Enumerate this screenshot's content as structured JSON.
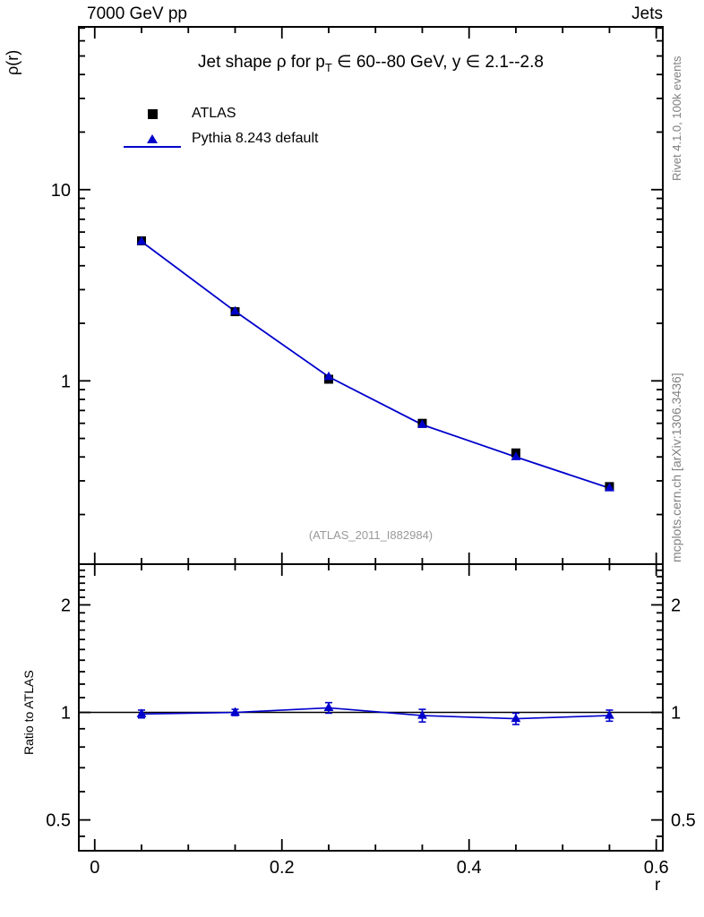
{
  "header": {
    "left": "7000 GeV pp",
    "right": "Jets"
  },
  "side_notes": {
    "top": "Rivet 4.1.0,  100k events",
    "bottom": "mcplots.cern.ch [arXiv:1306.3436]"
  },
  "watermark": "(ATLAS_2011_I882984)",
  "chart_data": {
    "type": "line",
    "title": "Jet shape ρ for p_T ∈ 60--80 GeV, y ∈ 2.1--2.8",
    "title_parts": {
      "before_sub": "Jet shape ρ for p",
      "sub": "T",
      "after_sub": " ∈ 60--80 GeV, y ∈ 2.1--2.8"
    },
    "xlabel": "r",
    "ylabel": "ρ(r)",
    "ratio_ylabel": "Ratio to ATLAS",
    "legend": {
      "position": "top-left"
    },
    "x": [
      0.05,
      0.15,
      0.25,
      0.35,
      0.45,
      0.55
    ],
    "series": [
      {
        "name": "ATLAS",
        "marker": "square",
        "color": "#000000",
        "values": [
          5.4,
          2.3,
          1.02,
          0.6,
          0.42,
          0.28
        ]
      },
      {
        "name": "Pythia 8.243 default",
        "marker": "triangle-line",
        "color": "#0000cc",
        "values": [
          5.35,
          2.31,
          1.05,
          0.59,
          0.4,
          0.275
        ]
      }
    ],
    "ratio": {
      "values": [
        0.99,
        1.0,
        1.03,
        0.98,
        0.96,
        0.98
      ],
      "errors": [
        0.025,
        0.02,
        0.035,
        0.04,
        0.035,
        0.035
      ]
    },
    "axes": {
      "xlim": [
        -0.017,
        0.607
      ],
      "main_ylim": [
        0.11,
        71
      ],
      "main_yscale": "log",
      "ratio_ylim": [
        0.41,
        2.6
      ],
      "ratio_yscale": "log",
      "grid": false,
      "xticks": {
        "major": [
          {
            "v": 0,
            "label": "0"
          },
          {
            "v": 0.2,
            "label": "0.2"
          },
          {
            "v": 0.4,
            "label": "0.4"
          },
          {
            "v": 0.6,
            "label": "0.6"
          }
        ],
        "minor": [
          0.05,
          0.1,
          0.15,
          0.25,
          0.3,
          0.35,
          0.45,
          0.5,
          0.55
        ]
      },
      "main_yticks": {
        "major": [
          {
            "v": 1,
            "label": "1"
          },
          {
            "v": 10,
            "label": "10"
          }
        ],
        "minor": [
          0.2,
          0.3,
          0.4,
          0.5,
          0.6,
          0.7,
          0.8,
          0.9,
          2,
          3,
          4,
          5,
          6,
          7,
          8,
          9,
          20,
          30,
          40,
          50,
          60,
          70
        ]
      },
      "ratio_yticks": {
        "major": [
          {
            "v": 0.5,
            "label": "0.5"
          },
          {
            "v": 1,
            "label": "1"
          },
          {
            "v": 2,
            "label": "2"
          }
        ],
        "minor": [
          0.45,
          0.6,
          0.7,
          0.8,
          0.9,
          1.1,
          1.2,
          1.3,
          1.4,
          1.5,
          1.6,
          1.7,
          1.8,
          1.9,
          2.1,
          2.2,
          2.3,
          2.4,
          2.5
        ]
      }
    }
  }
}
